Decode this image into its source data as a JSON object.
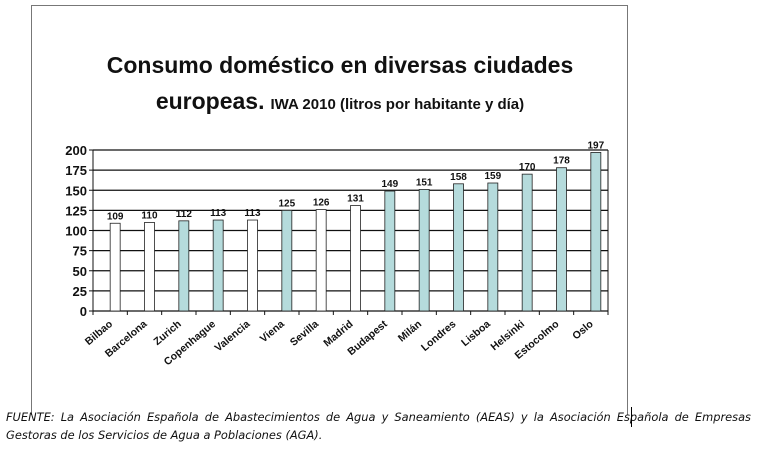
{
  "chart_data": {
    "type": "bar",
    "title": "Consumo doméstico en diversas ciudades",
    "title_line2": "europeas.",
    "subtitle": "IWA 2010 (litros por habitante y día)",
    "categories": [
      "Bilbao",
      "Barcelona",
      "Zurich",
      "Copenhague",
      "Valencia",
      "Viena",
      "Sevilla",
      "Madrid",
      "Budapest",
      "Milán",
      "Londres",
      "Lisboa",
      "Helsinki",
      "Estocolmo",
      "Oslo"
    ],
    "values": [
      109,
      110,
      112,
      113,
      113,
      125,
      126,
      131,
      149,
      151,
      158,
      159,
      170,
      178,
      197
    ],
    "highlight": [
      false,
      false,
      true,
      true,
      false,
      true,
      false,
      false,
      true,
      true,
      true,
      true,
      true,
      true,
      true
    ],
    "ylim": [
      0,
      200
    ],
    "yticks": [
      0,
      25,
      50,
      75,
      100,
      125,
      150,
      175,
      200
    ],
    "grid": true,
    "colors": {
      "spanish": "#ffffff",
      "other": "#b5dbdc",
      "stroke": "#222222"
    }
  },
  "footer": "FUENTE: La Asociación Española de Abastecimientos de Agua y Saneamiento (AEAS) y la Asociación Española de Empresas Gestoras de los Servicios de Agua a Poblaciones (AGA)."
}
